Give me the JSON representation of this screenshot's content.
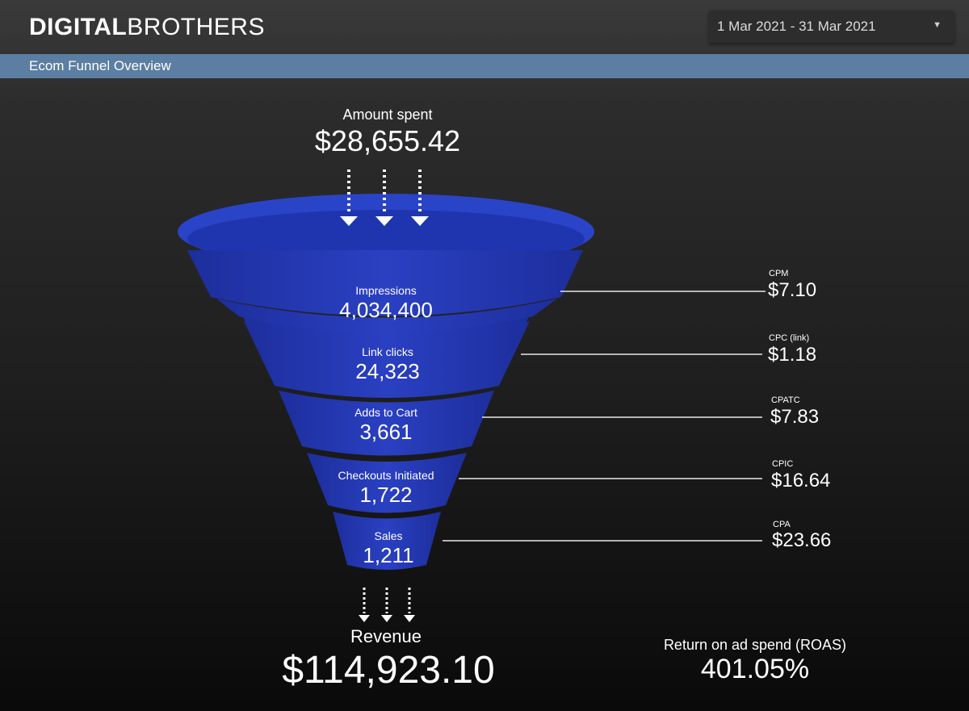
{
  "brand": {
    "bold": "DIGITAL",
    "regular": "BROTHERS"
  },
  "date_range": {
    "value": "1 Mar 2021 - 31 Mar 2021",
    "caret_icon": "caret-down-icon"
  },
  "section": {
    "title": "Ecom Funnel Overview"
  },
  "colors": {
    "accent_bar": "#5b7ea2",
    "funnel_blue": "#2436b4"
  },
  "spend": {
    "label": "Amount spent",
    "value": "$28,655.42"
  },
  "stages": [
    {
      "label": "Impressions",
      "value": "4,034,400"
    },
    {
      "label": "Link clicks",
      "value": "24,323"
    },
    {
      "label": "Adds to Cart",
      "value": "3,661"
    },
    {
      "label": "Checkouts Initiated",
      "value": "1,722"
    },
    {
      "label": "Sales",
      "value": "1,211"
    }
  ],
  "costs": [
    {
      "label": "CPM",
      "value": "$7.10"
    },
    {
      "label": "CPC (link)",
      "value": "$1.18"
    },
    {
      "label": "CPATC",
      "value": "$7.83"
    },
    {
      "label": "CPIC",
      "value": "$16.64"
    },
    {
      "label": "CPA",
      "value": "$23.66"
    }
  ],
  "revenue": {
    "label": "Revenue",
    "value": "$114,923.10"
  },
  "roas": {
    "label": "Return on ad spend (ROAS)",
    "value": "401.05%"
  }
}
